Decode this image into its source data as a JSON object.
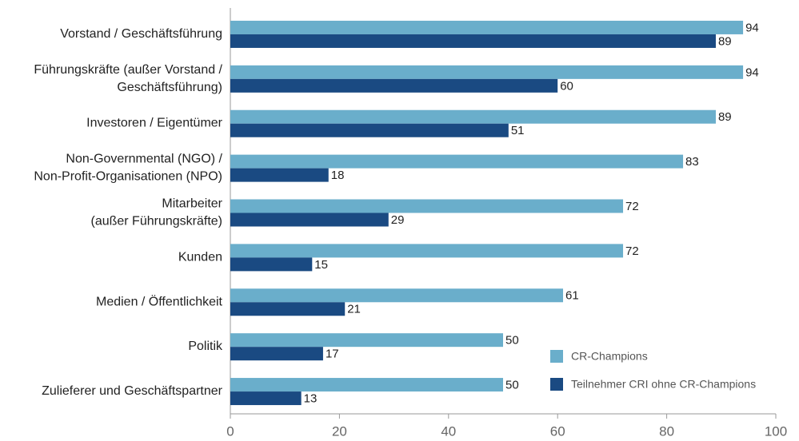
{
  "chart_data": {
    "type": "bar",
    "orientation": "horizontal",
    "categories": [
      "Vorstand / Geschäftsführung",
      "Führungskräfte (außer Vorstand /\nGeschäftsführung)",
      "Investoren / Eigentümer",
      "Non-Governmental (NGO) /\nNon-Profit-Organisationen (NPO)",
      "Mitarbeiter\n(außer Führungskräfte)",
      "Kunden",
      "Medien / Öffentlichkeit",
      "Politik",
      "Zulieferer und Geschäftspartner"
    ],
    "series": [
      {
        "name": "CR-Champions",
        "color": "#6aaecb",
        "values": [
          94,
          94,
          89,
          83,
          72,
          72,
          61,
          50,
          50
        ]
      },
      {
        "name": "Teilnehmer CRI ohne CR-Champions",
        "color": "#1a4a82",
        "values": [
          89,
          60,
          51,
          18,
          29,
          15,
          21,
          17,
          13
        ]
      }
    ],
    "xlim": [
      0,
      100
    ],
    "xticks": [
      0,
      20,
      40,
      60,
      80,
      100
    ],
    "grid": false,
    "legend": "lower right"
  }
}
